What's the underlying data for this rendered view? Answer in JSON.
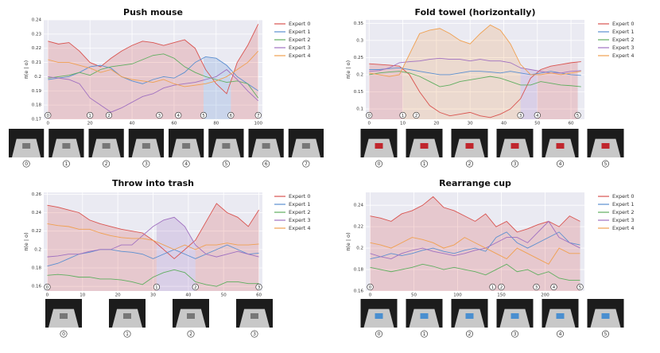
{
  "chart_data": [
    {
      "type": "line",
      "title": "Push mouse",
      "ylabel": "π(e | o)",
      "x": [
        0,
        5,
        10,
        15,
        20,
        25,
        30,
        35,
        40,
        45,
        50,
        55,
        60,
        65,
        70,
        75,
        80,
        85,
        90,
        95,
        100
      ],
      "xlim": [
        -2,
        102
      ],
      "xticks": [
        0,
        20,
        40,
        60,
        80,
        100
      ],
      "ylim": [
        0.17,
        0.24
      ],
      "yticks": [
        0.17,
        0.18,
        0.19,
        0.2,
        0.21,
        0.22,
        0.23,
        0.24
      ],
      "grid": true,
      "series": [
        {
          "name": "Expert 0",
          "color": "#d9534f",
          "values": [
            0.225,
            0.223,
            0.224,
            0.218,
            0.21,
            0.207,
            0.213,
            0.218,
            0.222,
            0.225,
            0.224,
            0.222,
            0.224,
            0.226,
            0.22,
            0.205,
            0.195,
            0.188,
            0.21,
            0.222,
            0.237
          ]
        },
        {
          "name": "Expert 1",
          "color": "#5b8fd0",
          "values": [
            0.198,
            0.199,
            0.2,
            0.203,
            0.207,
            0.208,
            0.206,
            0.2,
            0.197,
            0.195,
            0.198,
            0.2,
            0.199,
            0.203,
            0.21,
            0.214,
            0.213,
            0.208,
            0.2,
            0.195,
            0.19
          ]
        },
        {
          "name": "Expert 2",
          "color": "#5fae5f",
          "values": [
            0.199,
            0.2,
            0.201,
            0.203,
            0.201,
            0.205,
            0.207,
            0.208,
            0.209,
            0.212,
            0.215,
            0.216,
            0.213,
            0.207,
            0.203,
            0.2,
            0.198,
            0.196,
            0.197,
            0.195,
            0.185
          ]
        },
        {
          "name": "Expert 3",
          "color": "#a070c0",
          "values": [
            0.2,
            0.199,
            0.198,
            0.195,
            0.185,
            0.18,
            0.175,
            0.178,
            0.182,
            0.186,
            0.188,
            0.192,
            0.194,
            0.195,
            0.196,
            0.198,
            0.2,
            0.205,
            0.198,
            0.19,
            0.183
          ]
        },
        {
          "name": "Expert 4",
          "color": "#f0a050",
          "values": [
            0.212,
            0.21,
            0.21,
            0.208,
            0.206,
            0.203,
            0.205,
            0.2,
            0.198,
            0.197,
            0.196,
            0.198,
            0.195,
            0.193,
            0.194,
            0.195,
            0.197,
            0.2,
            0.205,
            0.21,
            0.218
          ]
        }
      ],
      "markers": [
        {
          "value": 0,
          "label": "0"
        },
        {
          "value": 20,
          "label": "1"
        },
        {
          "value": 29,
          "label": "2"
        },
        {
          "value": 53,
          "label": "3"
        },
        {
          "value": 62,
          "label": "4"
        },
        {
          "value": 74,
          "label": "5"
        },
        {
          "value": 87,
          "label": "6"
        },
        {
          "value": 100,
          "label": "7"
        }
      ]
    },
    {
      "type": "line",
      "title": "Fold towel (horizontally)",
      "ylabel": "π(e | o)",
      "x": [
        0,
        3,
        6,
        9,
        12,
        15,
        18,
        21,
        24,
        27,
        30,
        33,
        36,
        39,
        42,
        45,
        48,
        51,
        54,
        57,
        60,
        63
      ],
      "xlim": [
        -1,
        64
      ],
      "xticks": [
        0,
        10,
        20,
        30,
        40,
        50,
        60
      ],
      "ylim": [
        0.07,
        0.36
      ],
      "yticks": [
        0.1,
        0.15,
        0.2,
        0.25,
        0.3,
        0.35
      ],
      "grid": true,
      "series": [
        {
          "name": "Expert 0",
          "color": "#d9534f",
          "values": [
            0.232,
            0.23,
            0.228,
            0.225,
            0.2,
            0.15,
            0.11,
            0.09,
            0.08,
            0.085,
            0.09,
            0.08,
            0.075,
            0.085,
            0.1,
            0.13,
            0.19,
            0.215,
            0.225,
            0.23,
            0.235,
            0.238
          ]
        },
        {
          "name": "Expert 1",
          "color": "#5b8fd0",
          "values": [
            0.215,
            0.215,
            0.218,
            0.22,
            0.215,
            0.21,
            0.205,
            0.2,
            0.2,
            0.205,
            0.21,
            0.21,
            0.208,
            0.205,
            0.21,
            0.205,
            0.2,
            0.205,
            0.21,
            0.205,
            0.2,
            0.198
          ]
        },
        {
          "name": "Expert 2",
          "color": "#5fae5f",
          "values": [
            0.2,
            0.205,
            0.208,
            0.21,
            0.205,
            0.195,
            0.18,
            0.165,
            0.17,
            0.18,
            0.185,
            0.19,
            0.195,
            0.19,
            0.18,
            0.17,
            0.17,
            0.18,
            0.175,
            0.17,
            0.168,
            0.165
          ]
        },
        {
          "name": "Expert 3",
          "color": "#a070c0",
          "values": [
            0.21,
            0.212,
            0.22,
            0.235,
            0.238,
            0.24,
            0.245,
            0.248,
            0.245,
            0.245,
            0.24,
            0.245,
            0.24,
            0.24,
            0.235,
            0.22,
            0.215,
            0.21,
            0.205,
            0.205,
            0.21,
            0.212
          ]
        },
        {
          "name": "Expert 4",
          "color": "#f0a050",
          "values": [
            0.205,
            0.2,
            0.195,
            0.2,
            0.26,
            0.32,
            0.33,
            0.335,
            0.32,
            0.3,
            0.29,
            0.32,
            0.345,
            0.33,
            0.29,
            0.23,
            0.2,
            0.2,
            0.205,
            0.2,
            0.205,
            0.21
          ]
        }
      ],
      "markers": [
        {
          "value": 0,
          "label": "0"
        },
        {
          "value": 10,
          "label": "1"
        },
        {
          "value": 14,
          "label": "2"
        },
        {
          "value": 45,
          "label": "3"
        },
        {
          "value": 50,
          "label": "4"
        },
        {
          "value": 62,
          "label": "5"
        }
      ]
    },
    {
      "type": "line",
      "title": "Throw into trash",
      "ylabel": "π(e | o)",
      "x": [
        0,
        3,
        6,
        9,
        12,
        15,
        18,
        21,
        24,
        27,
        30,
        33,
        36,
        39,
        42,
        45,
        48,
        51,
        54,
        57,
        60
      ],
      "xlim": [
        -1,
        61
      ],
      "xticks": [
        0,
        10,
        20,
        30,
        40,
        50,
        60
      ],
      "ylim": [
        0.155,
        0.262
      ],
      "yticks": [
        0.16,
        0.18,
        0.2,
        0.22,
        0.24,
        0.26
      ],
      "grid": true,
      "series": [
        {
          "name": "Expert 0",
          "color": "#d9534f",
          "values": [
            0.248,
            0.246,
            0.243,
            0.24,
            0.232,
            0.228,
            0.225,
            0.222,
            0.22,
            0.218,
            0.21,
            0.2,
            0.19,
            0.2,
            0.21,
            0.23,
            0.25,
            0.24,
            0.235,
            0.225,
            0.243
          ]
        },
        {
          "name": "Expert 1",
          "color": "#5b8fd0",
          "values": [
            0.182,
            0.185,
            0.19,
            0.195,
            0.197,
            0.2,
            0.2,
            0.198,
            0.197,
            0.195,
            0.19,
            0.195,
            0.2,
            0.195,
            0.19,
            0.195,
            0.2,
            0.205,
            0.2,
            0.195,
            0.196
          ]
        },
        {
          "name": "Expert 2",
          "color": "#5fae5f",
          "values": [
            0.172,
            0.173,
            0.172,
            0.17,
            0.17,
            0.168,
            0.168,
            0.167,
            0.165,
            0.162,
            0.17,
            0.175,
            0.178,
            0.175,
            0.165,
            0.162,
            0.16,
            0.165,
            0.165,
            0.163,
            0.163
          ]
        },
        {
          "name": "Expert 3",
          "color": "#a070c0",
          "values": [
            0.192,
            0.193,
            0.195,
            0.195,
            0.198,
            0.2,
            0.2,
            0.205,
            0.205,
            0.215,
            0.225,
            0.232,
            0.235,
            0.225,
            0.205,
            0.195,
            0.192,
            0.195,
            0.198,
            0.195,
            0.192
          ]
        },
        {
          "name": "Expert 4",
          "color": "#f0a050",
          "values": [
            0.228,
            0.226,
            0.225,
            0.222,
            0.222,
            0.218,
            0.215,
            0.213,
            0.212,
            0.212,
            0.21,
            0.205,
            0.2,
            0.205,
            0.2,
            0.205,
            0.205,
            0.207,
            0.205,
            0.205,
            0.206
          ]
        }
      ],
      "markers": [
        {
          "value": 0,
          "label": "0"
        },
        {
          "value": 31,
          "label": "1"
        },
        {
          "value": 42,
          "label": "2"
        },
        {
          "value": 60,
          "label": "3"
        }
      ]
    },
    {
      "type": "line",
      "title": "Rearrange cup",
      "ylabel": "π(e | o)",
      "x": [
        0,
        12,
        24,
        36,
        48,
        60,
        72,
        84,
        96,
        108,
        120,
        132,
        144,
        156,
        168,
        180,
        192,
        204,
        216,
        228,
        240
      ],
      "xlim": [
        -5,
        245
      ],
      "xticks": [
        0,
        50,
        100,
        150,
        200
      ],
      "ylim": [
        0.16,
        0.252
      ],
      "yticks": [
        0.16,
        0.18,
        0.2,
        0.22,
        0.24
      ],
      "grid": true,
      "series": [
        {
          "name": "Expert 0",
          "color": "#d9534f",
          "values": [
            0.23,
            0.228,
            0.225,
            0.232,
            0.235,
            0.24,
            0.248,
            0.238,
            0.235,
            0.23,
            0.225,
            0.232,
            0.22,
            0.225,
            0.215,
            0.218,
            0.222,
            0.225,
            0.22,
            0.23,
            0.225
          ]
        },
        {
          "name": "Expert 1",
          "color": "#5b8fd0",
          "values": [
            0.19,
            0.192,
            0.195,
            0.193,
            0.195,
            0.198,
            0.2,
            0.197,
            0.195,
            0.198,
            0.2,
            0.197,
            0.21,
            0.215,
            0.205,
            0.2,
            0.205,
            0.21,
            0.215,
            0.205,
            0.203
          ]
        },
        {
          "name": "Expert 2",
          "color": "#5fae5f",
          "values": [
            0.182,
            0.18,
            0.178,
            0.18,
            0.182,
            0.185,
            0.183,
            0.18,
            0.182,
            0.18,
            0.178,
            0.175,
            0.18,
            0.185,
            0.178,
            0.18,
            0.175,
            0.178,
            0.172,
            0.17,
            0.17
          ]
        },
        {
          "name": "Expert 3",
          "color": "#a070c0",
          "values": [
            0.195,
            0.192,
            0.19,
            0.195,
            0.198,
            0.2,
            0.197,
            0.195,
            0.193,
            0.195,
            0.198,
            0.2,
            0.205,
            0.21,
            0.21,
            0.205,
            0.215,
            0.225,
            0.21,
            0.205,
            0.2
          ]
        },
        {
          "name": "Expert 4",
          "color": "#f0a050",
          "values": [
            0.205,
            0.203,
            0.2,
            0.205,
            0.21,
            0.208,
            0.205,
            0.2,
            0.203,
            0.21,
            0.205,
            0.2,
            0.195,
            0.19,
            0.2,
            0.195,
            0.19,
            0.185,
            0.2,
            0.195,
            0.195
          ]
        }
      ],
      "markers": [
        {
          "value": 0,
          "label": "0"
        },
        {
          "value": 140,
          "label": "1"
        },
        {
          "value": 150,
          "label": "2"
        },
        {
          "value": 190,
          "label": "3"
        },
        {
          "value": 210,
          "label": "4"
        },
        {
          "value": 240,
          "label": "5"
        }
      ]
    }
  ]
}
